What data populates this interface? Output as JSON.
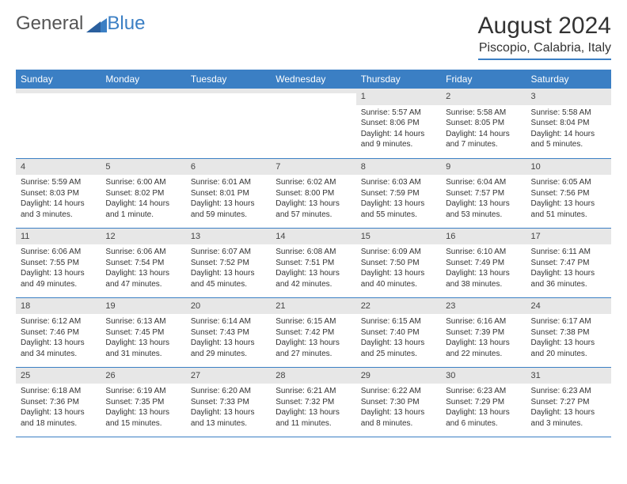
{
  "brand": {
    "name1": "General",
    "name2": "Blue"
  },
  "header": {
    "month_title": "August 2024",
    "location": "Piscopio, Calabria, Italy"
  },
  "colors": {
    "accent": "#3b7fc4",
    "header_bg": "#3b7fc4",
    "header_text": "#ffffff",
    "daynum_bg": "#e7e7e7",
    "text": "#333333"
  },
  "weekdays": [
    "Sunday",
    "Monday",
    "Tuesday",
    "Wednesday",
    "Thursday",
    "Friday",
    "Saturday"
  ],
  "weeks": [
    [
      {
        "n": "",
        "sr": "",
        "ss": "",
        "dl": ""
      },
      {
        "n": "",
        "sr": "",
        "ss": "",
        "dl": ""
      },
      {
        "n": "",
        "sr": "",
        "ss": "",
        "dl": ""
      },
      {
        "n": "",
        "sr": "",
        "ss": "",
        "dl": ""
      },
      {
        "n": "1",
        "sr": "Sunrise: 5:57 AM",
        "ss": "Sunset: 8:06 PM",
        "dl": "Daylight: 14 hours and 9 minutes."
      },
      {
        "n": "2",
        "sr": "Sunrise: 5:58 AM",
        "ss": "Sunset: 8:05 PM",
        "dl": "Daylight: 14 hours and 7 minutes."
      },
      {
        "n": "3",
        "sr": "Sunrise: 5:58 AM",
        "ss": "Sunset: 8:04 PM",
        "dl": "Daylight: 14 hours and 5 minutes."
      }
    ],
    [
      {
        "n": "4",
        "sr": "Sunrise: 5:59 AM",
        "ss": "Sunset: 8:03 PM",
        "dl": "Daylight: 14 hours and 3 minutes."
      },
      {
        "n": "5",
        "sr": "Sunrise: 6:00 AM",
        "ss": "Sunset: 8:02 PM",
        "dl": "Daylight: 14 hours and 1 minute."
      },
      {
        "n": "6",
        "sr": "Sunrise: 6:01 AM",
        "ss": "Sunset: 8:01 PM",
        "dl": "Daylight: 13 hours and 59 minutes."
      },
      {
        "n": "7",
        "sr": "Sunrise: 6:02 AM",
        "ss": "Sunset: 8:00 PM",
        "dl": "Daylight: 13 hours and 57 minutes."
      },
      {
        "n": "8",
        "sr": "Sunrise: 6:03 AM",
        "ss": "Sunset: 7:59 PM",
        "dl": "Daylight: 13 hours and 55 minutes."
      },
      {
        "n": "9",
        "sr": "Sunrise: 6:04 AM",
        "ss": "Sunset: 7:57 PM",
        "dl": "Daylight: 13 hours and 53 minutes."
      },
      {
        "n": "10",
        "sr": "Sunrise: 6:05 AM",
        "ss": "Sunset: 7:56 PM",
        "dl": "Daylight: 13 hours and 51 minutes."
      }
    ],
    [
      {
        "n": "11",
        "sr": "Sunrise: 6:06 AM",
        "ss": "Sunset: 7:55 PM",
        "dl": "Daylight: 13 hours and 49 minutes."
      },
      {
        "n": "12",
        "sr": "Sunrise: 6:06 AM",
        "ss": "Sunset: 7:54 PM",
        "dl": "Daylight: 13 hours and 47 minutes."
      },
      {
        "n": "13",
        "sr": "Sunrise: 6:07 AM",
        "ss": "Sunset: 7:52 PM",
        "dl": "Daylight: 13 hours and 45 minutes."
      },
      {
        "n": "14",
        "sr": "Sunrise: 6:08 AM",
        "ss": "Sunset: 7:51 PM",
        "dl": "Daylight: 13 hours and 42 minutes."
      },
      {
        "n": "15",
        "sr": "Sunrise: 6:09 AM",
        "ss": "Sunset: 7:50 PM",
        "dl": "Daylight: 13 hours and 40 minutes."
      },
      {
        "n": "16",
        "sr": "Sunrise: 6:10 AM",
        "ss": "Sunset: 7:49 PM",
        "dl": "Daylight: 13 hours and 38 minutes."
      },
      {
        "n": "17",
        "sr": "Sunrise: 6:11 AM",
        "ss": "Sunset: 7:47 PM",
        "dl": "Daylight: 13 hours and 36 minutes."
      }
    ],
    [
      {
        "n": "18",
        "sr": "Sunrise: 6:12 AM",
        "ss": "Sunset: 7:46 PM",
        "dl": "Daylight: 13 hours and 34 minutes."
      },
      {
        "n": "19",
        "sr": "Sunrise: 6:13 AM",
        "ss": "Sunset: 7:45 PM",
        "dl": "Daylight: 13 hours and 31 minutes."
      },
      {
        "n": "20",
        "sr": "Sunrise: 6:14 AM",
        "ss": "Sunset: 7:43 PM",
        "dl": "Daylight: 13 hours and 29 minutes."
      },
      {
        "n": "21",
        "sr": "Sunrise: 6:15 AM",
        "ss": "Sunset: 7:42 PM",
        "dl": "Daylight: 13 hours and 27 minutes."
      },
      {
        "n": "22",
        "sr": "Sunrise: 6:15 AM",
        "ss": "Sunset: 7:40 PM",
        "dl": "Daylight: 13 hours and 25 minutes."
      },
      {
        "n": "23",
        "sr": "Sunrise: 6:16 AM",
        "ss": "Sunset: 7:39 PM",
        "dl": "Daylight: 13 hours and 22 minutes."
      },
      {
        "n": "24",
        "sr": "Sunrise: 6:17 AM",
        "ss": "Sunset: 7:38 PM",
        "dl": "Daylight: 13 hours and 20 minutes."
      }
    ],
    [
      {
        "n": "25",
        "sr": "Sunrise: 6:18 AM",
        "ss": "Sunset: 7:36 PM",
        "dl": "Daylight: 13 hours and 18 minutes."
      },
      {
        "n": "26",
        "sr": "Sunrise: 6:19 AM",
        "ss": "Sunset: 7:35 PM",
        "dl": "Daylight: 13 hours and 15 minutes."
      },
      {
        "n": "27",
        "sr": "Sunrise: 6:20 AM",
        "ss": "Sunset: 7:33 PM",
        "dl": "Daylight: 13 hours and 13 minutes."
      },
      {
        "n": "28",
        "sr": "Sunrise: 6:21 AM",
        "ss": "Sunset: 7:32 PM",
        "dl": "Daylight: 13 hours and 11 minutes."
      },
      {
        "n": "29",
        "sr": "Sunrise: 6:22 AM",
        "ss": "Sunset: 7:30 PM",
        "dl": "Daylight: 13 hours and 8 minutes."
      },
      {
        "n": "30",
        "sr": "Sunrise: 6:23 AM",
        "ss": "Sunset: 7:29 PM",
        "dl": "Daylight: 13 hours and 6 minutes."
      },
      {
        "n": "31",
        "sr": "Sunrise: 6:23 AM",
        "ss": "Sunset: 7:27 PM",
        "dl": "Daylight: 13 hours and 3 minutes."
      }
    ]
  ]
}
